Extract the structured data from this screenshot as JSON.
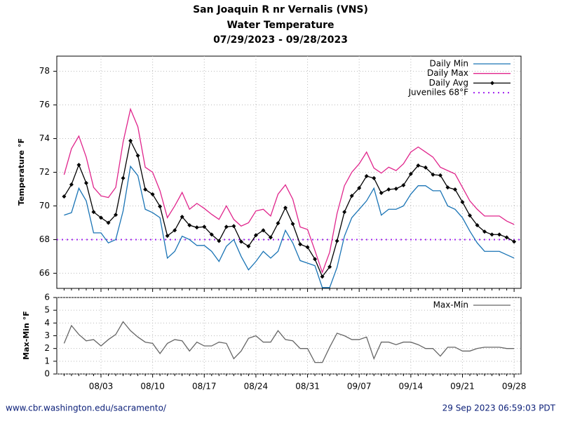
{
  "chart_data": [
    {
      "type": "line",
      "title": "San Joaquin R nr Vernalis (VNS)",
      "subtitle": "Water Temperature",
      "date_range": "07/29/2023 - 09/28/2023",
      "y_label": "Temperature °F",
      "ylim": [
        65.1,
        78.9
      ],
      "yticks": [
        66,
        68,
        70,
        72,
        74,
        76,
        78
      ],
      "grid": true,
      "legend": "upper right",
      "series": [
        {
          "name": "Daily Min",
          "color": "#1a74b5",
          "values": [
            69.45,
            69.6,
            71.05,
            70.3,
            68.4,
            68.4,
            67.8,
            68.0,
            69.7,
            72.35,
            71.8,
            69.8,
            69.6,
            69.3,
            66.9,
            67.3,
            68.2,
            68.0,
            67.65,
            67.65,
            67.3,
            66.7,
            67.6,
            68.0,
            67.0,
            66.2,
            66.7,
            67.3,
            66.9,
            67.3,
            68.55,
            67.8,
            66.75,
            66.6,
            66.45,
            65.15,
            65.15,
            66.35,
            68.2,
            69.3,
            69.8,
            70.3,
            71.05,
            69.45,
            69.8,
            69.8,
            70.0,
            70.7,
            71.2,
            71.2,
            70.9,
            70.9,
            70.0,
            69.8,
            69.3,
            68.5,
            67.8,
            67.3,
            67.3,
            67.3,
            67.1,
            66.9
          ]
        },
        {
          "name": "Daily Max",
          "color": "#e0258c",
          "values": [
            71.85,
            73.4,
            74.15,
            72.9,
            71.1,
            70.6,
            70.5,
            71.1,
            73.8,
            75.75,
            74.7,
            72.3,
            72.0,
            70.9,
            69.3,
            70.0,
            70.8,
            69.8,
            70.15,
            69.85,
            69.5,
            69.2,
            70.0,
            69.2,
            68.8,
            69.0,
            69.7,
            69.8,
            69.4,
            70.7,
            71.25,
            70.4,
            68.75,
            68.6,
            67.35,
            66.05,
            67.25,
            69.55,
            71.2,
            72.0,
            72.5,
            73.2,
            72.25,
            71.95,
            72.3,
            72.1,
            72.5,
            73.2,
            73.5,
            73.2,
            72.9,
            72.3,
            72.1,
            71.9,
            71.1,
            70.3,
            69.8,
            69.4,
            69.4,
            69.4,
            69.1,
            68.9
          ]
        },
        {
          "name": "Daily Avg",
          "color": "#000000",
          "marker": "diamond",
          "values": [
            70.56,
            71.27,
            72.44,
            71.36,
            69.64,
            69.3,
            69.0,
            69.47,
            71.65,
            73.87,
            72.99,
            70.98,
            70.69,
            69.97,
            68.22,
            68.55,
            69.35,
            68.85,
            68.72,
            68.76,
            68.3,
            67.92,
            68.76,
            68.8,
            67.88,
            67.6,
            68.26,
            68.55,
            68.13,
            68.97,
            69.89,
            68.93,
            67.72,
            67.55,
            66.84,
            65.8,
            66.38,
            67.92,
            69.64,
            70.6,
            71.06,
            71.77,
            71.65,
            70.77,
            70.98,
            71.02,
            71.23,
            71.9,
            72.4,
            72.28,
            71.86,
            71.82,
            71.1,
            70.98,
            70.23,
            69.43,
            68.85,
            68.47,
            68.3,
            68.3,
            68.13,
            67.88
          ]
        }
      ],
      "reference_lines": [
        {
          "name": "Juveniles 68°F",
          "value": 68,
          "color": "#a020f0",
          "style": "dotted"
        }
      ]
    },
    {
      "type": "line",
      "y_label": "Max-Min °F",
      "ylim": [
        0,
        6
      ],
      "yticks": [
        0,
        1,
        2,
        3,
        4,
        5,
        6
      ],
      "grid": true,
      "legend": "upper right",
      "categories": [
        null,
        null,
        null,
        null,
        null,
        "08/03",
        null,
        null,
        null,
        null,
        null,
        null,
        "08/10",
        null,
        null,
        null,
        null,
        null,
        null,
        "08/17",
        null,
        null,
        null,
        null,
        null,
        null,
        "08/24",
        null,
        null,
        null,
        null,
        null,
        null,
        "08/31",
        null,
        null,
        null,
        null,
        null,
        null,
        "09/07",
        null,
        null,
        null,
        null,
        null,
        null,
        "09/14",
        null,
        null,
        null,
        null,
        null,
        null,
        "09/21",
        null,
        null,
        null,
        null,
        null,
        null,
        "09/28"
      ],
      "series": [
        {
          "name": "Max-Min",
          "color": "#666666",
          "values": [
            2.4,
            3.8,
            3.1,
            2.6,
            2.7,
            2.2,
            2.7,
            3.1,
            4.1,
            3.4,
            2.9,
            2.5,
            2.4,
            1.6,
            2.4,
            2.7,
            2.6,
            1.8,
            2.5,
            2.2,
            2.2,
            2.5,
            2.4,
            1.2,
            1.8,
            2.8,
            3.0,
            2.5,
            2.5,
            3.4,
            2.7,
            2.6,
            2.0,
            2.0,
            0.9,
            0.9,
            2.1,
            3.2,
            3.0,
            2.7,
            2.7,
            2.9,
            1.2,
            2.5,
            2.5,
            2.3,
            2.5,
            2.5,
            2.3,
            2.0,
            2.0,
            1.4,
            2.1,
            2.1,
            1.8,
            1.8,
            2.0,
            2.1,
            2.1,
            2.1,
            2.0,
            2.0
          ]
        }
      ]
    }
  ],
  "footer": {
    "left": "www.cbr.washington.edu/sacramento/",
    "right": "29 Sep 2023 06:59:03 PDT"
  }
}
